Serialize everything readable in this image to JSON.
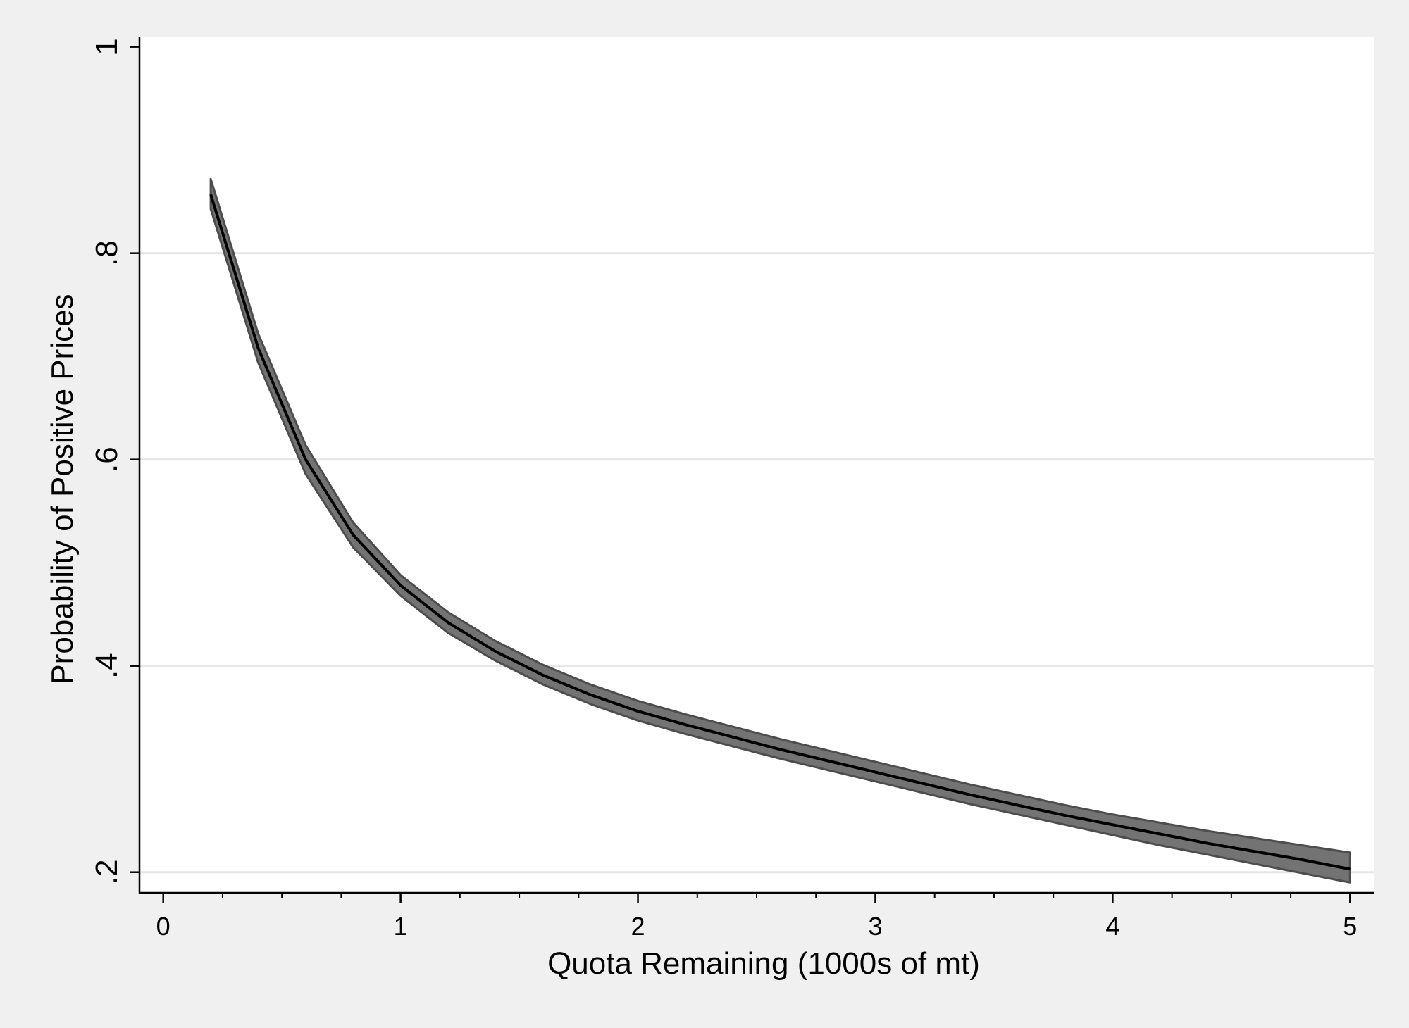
{
  "chart_data": {
    "type": "line",
    "title": "",
    "xlabel": "Quota Remaining (1000s of mt)",
    "ylabel": "Probability of Positive Prices",
    "xlim": [
      -0.1,
      5.1
    ],
    "ylim": [
      0.18,
      1.01
    ],
    "x_ticks": [
      0,
      1,
      2,
      3,
      4,
      5
    ],
    "x_tick_labels": [
      "0",
      "1",
      "2",
      "3",
      "4",
      "5"
    ],
    "x_minor_step": 0.25,
    "y_ticks": [
      0.2,
      0.4,
      0.6,
      0.8,
      1.0
    ],
    "y_tick_labels": [
      ".2",
      ".4",
      ".6",
      ".8",
      "1"
    ],
    "grid": "horizontal",
    "legend": "none",
    "colors": {
      "background": "#f0f0f0",
      "plot_area": "#ffffff",
      "gridline": "#e6e6e6",
      "band_fill": "#737373",
      "band_edge": "#4d4d4d",
      "line": "#000000"
    },
    "series": [
      {
        "x": [
          0.2,
          0.4,
          0.6,
          0.8,
          1.0,
          1.2,
          1.4,
          1.6,
          1.8,
          2.0,
          2.2,
          2.4,
          2.6,
          2.8,
          3.0,
          3.2,
          3.4,
          3.6,
          3.8,
          4.0,
          4.2,
          4.4,
          4.6,
          4.8,
          5.0
        ],
        "y": [
          0.857,
          0.708,
          0.6,
          0.527,
          0.478,
          0.442,
          0.414,
          0.391,
          0.372,
          0.356,
          0.343,
          0.331,
          0.319,
          0.308,
          0.297,
          0.286,
          0.275,
          0.265,
          0.255,
          0.246,
          0.237,
          0.228,
          0.22,
          0.212,
          0.203
        ],
        "lower": [
          0.843,
          0.694,
          0.586,
          0.515,
          0.468,
          0.432,
          0.405,
          0.382,
          0.363,
          0.347,
          0.334,
          0.322,
          0.31,
          0.299,
          0.288,
          0.277,
          0.266,
          0.256,
          0.246,
          0.236,
          0.226,
          0.217,
          0.208,
          0.199,
          0.19
        ],
        "upper": [
          0.872,
          0.722,
          0.614,
          0.539,
          0.488,
          0.452,
          0.424,
          0.401,
          0.382,
          0.366,
          0.353,
          0.341,
          0.329,
          0.318,
          0.307,
          0.296,
          0.285,
          0.275,
          0.265,
          0.256,
          0.248,
          0.24,
          0.233,
          0.226,
          0.219
        ]
      }
    ]
  }
}
